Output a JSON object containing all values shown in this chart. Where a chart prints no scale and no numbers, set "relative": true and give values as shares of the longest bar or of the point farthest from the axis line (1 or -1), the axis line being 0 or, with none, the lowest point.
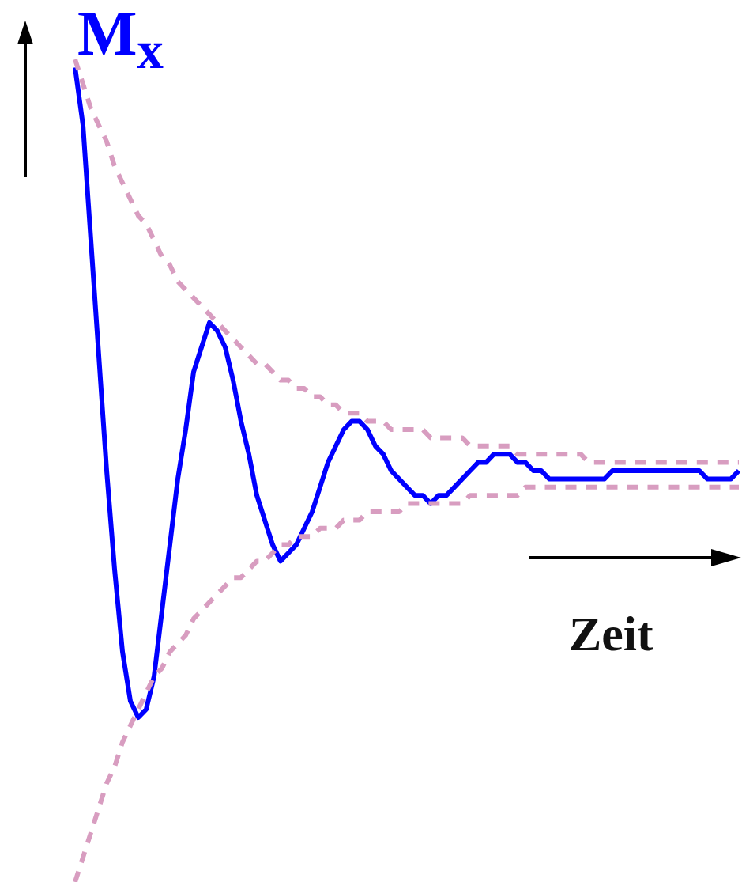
{
  "chart_data": {
    "type": "line",
    "relative": true,
    "xlabel": "Zeit",
    "ylabel": "M$_{x}$",
    "categories": [
      null,
      null,
      null,
      null,
      null,
      null,
      null,
      null,
      null,
      null,
      null,
      null,
      null,
      null,
      null,
      null,
      null,
      null,
      null,
      null,
      null,
      null,
      null,
      null,
      null,
      null,
      null,
      null,
      null,
      null,
      null,
      null,
      null,
      null,
      null,
      null,
      null,
      null,
      null,
      null,
      null,
      null,
      null,
      null,
      null,
      null,
      null,
      null,
      null,
      null,
      null,
      null,
      null,
      null,
      null,
      null,
      null,
      null,
      null,
      null,
      null,
      null,
      null,
      null,
      null,
      null,
      null,
      null,
      null,
      null,
      null,
      null,
      null,
      null,
      null,
      null,
      null,
      null,
      null,
      null,
      null,
      null,
      null,
      null,
      null
    ],
    "series": [
      {
        "color": "#d89dc0",
        "line_style": "dashed",
        "values": [
          1.0,
          0.97,
          0.94,
          0.92,
          0.9,
          0.87,
          0.85,
          0.83,
          0.81,
          0.8,
          0.78,
          0.76,
          0.75,
          0.73,
          0.72,
          0.71,
          0.7,
          0.69,
          0.68,
          0.67,
          0.66,
          0.65,
          0.64,
          0.63,
          0.63,
          0.62,
          0.61,
          0.61,
          0.6,
          0.6,
          0.59,
          0.59,
          0.58,
          0.58,
          0.57,
          0.57,
          0.57,
          0.56,
          0.56,
          0.56,
          0.55,
          0.55,
          0.55,
          0.55,
          0.55,
          0.54,
          0.54,
          0.54,
          0.54,
          0.54,
          0.53,
          0.53,
          0.53,
          0.53,
          0.53,
          0.53,
          0.52,
          0.52,
          0.52,
          0.52,
          0.52,
          0.52,
          0.52,
          0.52,
          0.52,
          0.51,
          0.51,
          0.51,
          0.51,
          0.51,
          0.51,
          0.51,
          0.51,
          0.51,
          0.51,
          0.51,
          0.51,
          0.51,
          0.51,
          0.51,
          0.51,
          0.51,
          0.51,
          0.51,
          0.51
        ]
      },
      {
        "color": "#d89dc0",
        "line_style": "dashed",
        "values": [
          0.0,
          0.03,
          0.06,
          0.09,
          0.12,
          0.14,
          0.17,
          0.19,
          0.21,
          0.23,
          0.25,
          0.26,
          0.28,
          0.29,
          0.3,
          0.32,
          0.33,
          0.34,
          0.35,
          0.36,
          0.37,
          0.37,
          0.38,
          0.39,
          0.39,
          0.4,
          0.41,
          0.41,
          0.42,
          0.42,
          0.42,
          0.43,
          0.43,
          0.43,
          0.44,
          0.44,
          0.44,
          0.45,
          0.45,
          0.45,
          0.45,
          0.45,
          0.46,
          0.46,
          0.46,
          0.46,
          0.46,
          0.46,
          0.46,
          0.46,
          0.47,
          0.47,
          0.47,
          0.47,
          0.47,
          0.47,
          0.47,
          0.48,
          0.48,
          0.48,
          0.48,
          0.48,
          0.48,
          0.48,
          0.48,
          0.48,
          0.48,
          0.48,
          0.48,
          0.48,
          0.48,
          0.48,
          0.48,
          0.48,
          0.48,
          0.48,
          0.48,
          0.48,
          0.48,
          0.48,
          0.48,
          0.48,
          0.48,
          0.48,
          0.48
        ]
      },
      {
        "color": "#0000ff",
        "line_style": "solid",
        "values": [
          0.99,
          0.92,
          0.78,
          0.64,
          0.5,
          0.38,
          0.28,
          0.22,
          0.2,
          0.21,
          0.25,
          0.33,
          0.41,
          0.49,
          0.55,
          0.62,
          0.65,
          0.68,
          0.67,
          0.65,
          0.61,
          0.56,
          0.52,
          0.47,
          0.44,
          0.41,
          0.39,
          0.4,
          0.41,
          0.43,
          0.45,
          0.48,
          0.51,
          0.53,
          0.55,
          0.56,
          0.56,
          0.55,
          0.53,
          0.52,
          0.5,
          0.49,
          0.48,
          0.47,
          0.47,
          0.46,
          0.47,
          0.47,
          0.48,
          0.49,
          0.5,
          0.51,
          0.51,
          0.52,
          0.52,
          0.52,
          0.51,
          0.51,
          0.5,
          0.5,
          0.49,
          0.49,
          0.49,
          0.49,
          0.49,
          0.49,
          0.49,
          0.49,
          0.5,
          0.5,
          0.5,
          0.5,
          0.5,
          0.5,
          0.5,
          0.5,
          0.5,
          0.5,
          0.5,
          0.5,
          0.49,
          0.49,
          0.49,
          0.49,
          0.5
        ]
      }
    ]
  }
}
